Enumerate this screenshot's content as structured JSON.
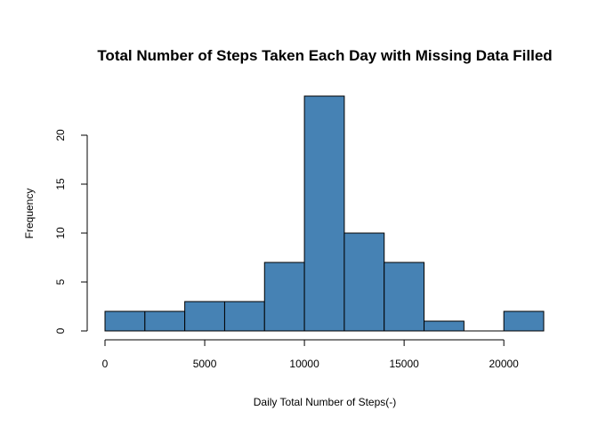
{
  "chart_data": {
    "type": "bar",
    "title": "Total Number of Steps Taken Each Day with Missing Data Filled",
    "xlabel": "Daily Total Number of Steps(-)",
    "ylabel": "Frequency",
    "bin_edges": [
      0,
      2000,
      4000,
      6000,
      8000,
      10000,
      12000,
      14000,
      16000,
      18000,
      20000,
      22000
    ],
    "values": [
      2,
      2,
      3,
      3,
      7,
      24,
      10,
      7,
      1,
      0,
      2
    ],
    "xlim": [
      0,
      22000
    ],
    "ylim": [
      0,
      24
    ],
    "x_ticks": [
      0,
      5000,
      10000,
      15000,
      20000
    ],
    "y_ticks": [
      0,
      5,
      10,
      15,
      20
    ],
    "bar_color": "#4682B4",
    "grid": false,
    "legend": "none"
  }
}
